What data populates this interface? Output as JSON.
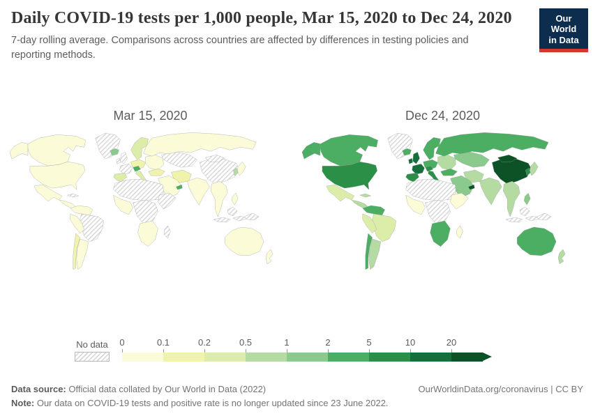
{
  "header": {
    "title": "Daily COVID-19 tests per 1,000 people, Mar 15, 2020 to Dec 24, 2020",
    "subtitle": "7-day rolling average. Comparisons across countries are affected by differences in testing policies and reporting methods.",
    "logo": {
      "line1": "Our World",
      "line2": "in Data",
      "bg": "#0c2d4e",
      "accent": "#d8352c"
    }
  },
  "chart_data": {
    "type": "choropleth",
    "title": "Daily COVID-19 tests per 1,000 people, Mar 15, 2020 to Dec 24, 2020",
    "unit": "tests per 1,000 people, 7-day rolling average",
    "legend": {
      "no_data_label": "No data",
      "tick_labels": [
        "0",
        "0.1",
        "0.2",
        "0.5",
        "1",
        "2",
        "5",
        "10",
        "20"
      ],
      "colors": [
        "#fcfbd7",
        "#eff3ab",
        "#dcedaa",
        "#b3dba2",
        "#8aca8d",
        "#4cae62",
        "#2c8f47",
        "#156f3a",
        "#0b5226"
      ],
      "no_data_pattern": "gray-diagonal-hatch"
    },
    "maps": [
      {
        "label": "Mar 15, 2020",
        "fills": {
          "greenland": "nodata",
          "canada": 0,
          "alaska": 0,
          "usa": 0,
          "mexico": 0,
          "central-america": 0,
          "caribbean": "nodata",
          "colombia-venezuela": 0,
          "brazil": "nodata",
          "peru-ecuador": 0,
          "chile": 1,
          "argentina": 0,
          "iceland": 4,
          "scandinavia": 2,
          "uk-ireland": "nodata",
          "east-europe": 0,
          "central-europe": 1,
          "alpine": 5,
          "france": "nodata",
          "iberia": 2,
          "italy": 2,
          "turkey": 1,
          "russia": 0,
          "kazakhstan": "nodata",
          "china": "nodata",
          "mongolia": "nodata",
          "iran": 1,
          "middle-east": 0,
          "uae": 5,
          "north-africa": "nodata",
          "west-africa": 0,
          "central-africa": "nodata",
          "east-africa": "nodata",
          "southern-africa": 0,
          "madagascar": "nodata",
          "india": 0,
          "se-asia": 0,
          "indonesia": "nodata",
          "philippines": 0,
          "japan": 0,
          "korea": 3,
          "new-guinea": "nodata",
          "australia": 0,
          "new-zealand": 0
        }
      },
      {
        "label": "Dec 24, 2020",
        "fills": {
          "greenland": "nodata",
          "canada": 5,
          "alaska": 5,
          "usa": 6,
          "mexico": 2,
          "central-america": 3,
          "caribbean": 3,
          "colombia-venezuela": 5,
          "brazil": 2,
          "peru-ecuador": 2,
          "chile": 5,
          "argentina": 3,
          "iceland": 5,
          "scandinavia": 5,
          "uk-ireland": 7,
          "east-europe": 3,
          "central-europe": 5,
          "alpine": 6,
          "france": 7,
          "iberia": 6,
          "italy": 6,
          "turkey": 5,
          "russia": 5,
          "kazakhstan": 4,
          "china": 8,
          "mongolia": 8,
          "iran": 3,
          "middle-east": 4,
          "uae": 8,
          "north-africa": "nodata",
          "west-africa": 0,
          "central-africa": "nodata",
          "east-africa": 0,
          "southern-africa": 5,
          "madagascar": 0,
          "india": 3,
          "se-asia": 3,
          "indonesia": "nodata",
          "philippines": 4,
          "japan": 3,
          "korea": 6,
          "new-guinea": "nodata",
          "australia": 5,
          "new-zealand": 3
        }
      }
    ]
  },
  "footer": {
    "source_label": "Data source:",
    "source_rest": " Official data collated by Our World in Data (2022)",
    "note_label": "Note:",
    "note_rest": " Our data on COVID-19 tests and positive rate is no longer updated since 23 June 2022.",
    "credit": "OurWorldinData.org/coronavirus | CC BY"
  }
}
